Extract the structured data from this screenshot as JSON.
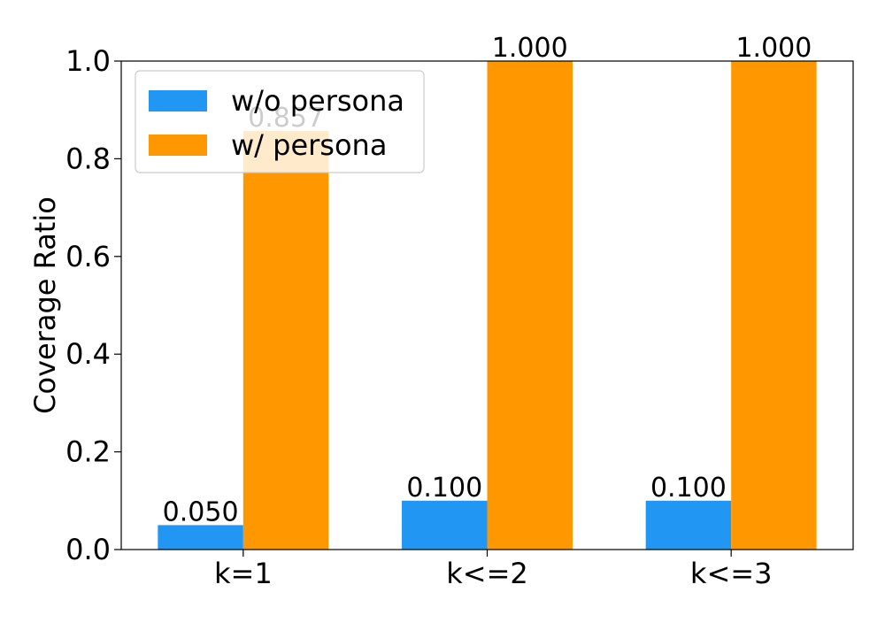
{
  "chart_data": {
    "type": "bar",
    "title": "",
    "xlabel": "",
    "ylabel": "Coverage Ratio",
    "categories": [
      "k=1",
      "k<=2",
      "k<=3"
    ],
    "ylim": [
      0.0,
      1.0
    ],
    "yticks": [
      "0.0",
      "0.2",
      "0.4",
      "0.6",
      "0.8",
      "1.0"
    ],
    "grid": false,
    "legend_position": "upper-left",
    "series": [
      {
        "name": "w/o persona",
        "color": "#2196f3",
        "values": [
          0.05,
          0.1,
          0.1
        ],
        "labels": [
          "0.050",
          "0.100",
          "0.100"
        ]
      },
      {
        "name": "w/ persona",
        "color": "#ff9800",
        "values": [
          0.857,
          1.0,
          1.0
        ],
        "labels": [
          "0.857",
          "1.000",
          "1.000"
        ]
      }
    ]
  }
}
